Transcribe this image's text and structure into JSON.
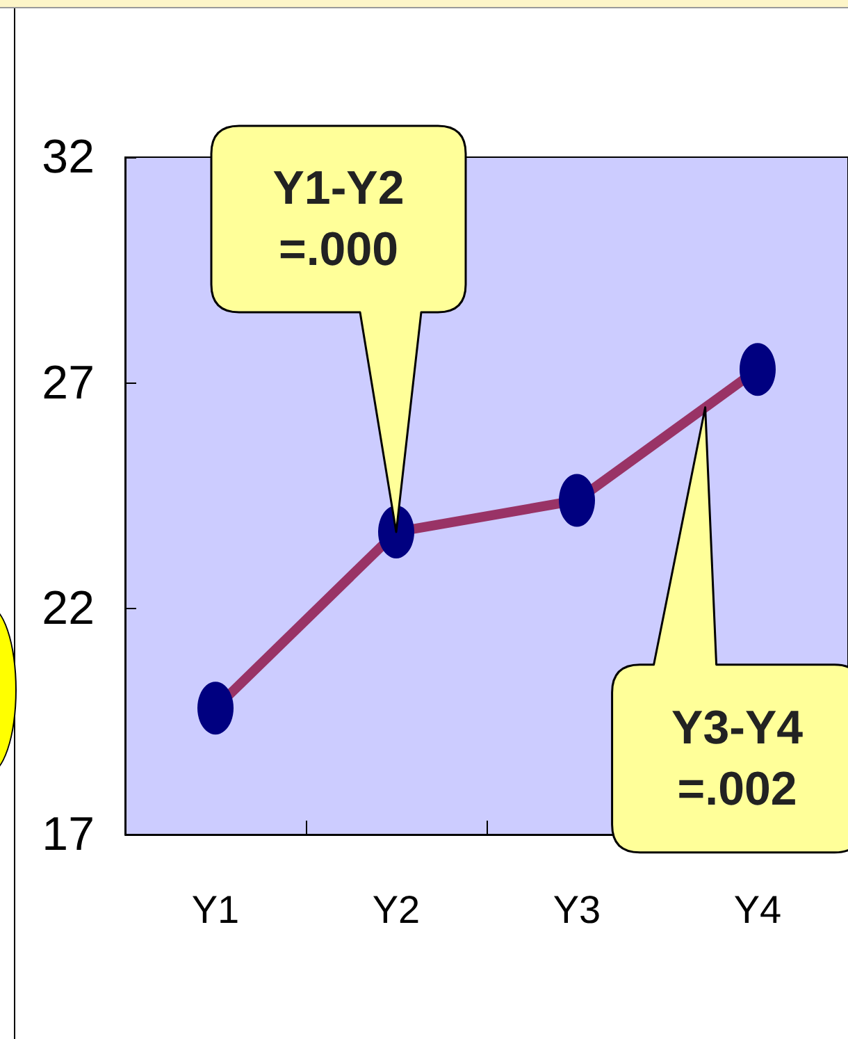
{
  "chart_data": {
    "type": "line",
    "categories": [
      "Y1",
      "Y2",
      "Y3",
      "Y4"
    ],
    "series": [
      {
        "color": "#993366",
        "values": [
          19.8,
          23.7,
          24.4,
          27.3
        ]
      }
    ],
    "ylim": [
      17,
      32
    ],
    "yticks": [
      17,
      22,
      27,
      32
    ],
    "grid": false,
    "marker": "circle",
    "line_style": "solid",
    "annotations": [
      "Y1-Y2\n=.000",
      "Y3-Y4\n=.002"
    ]
  }
}
